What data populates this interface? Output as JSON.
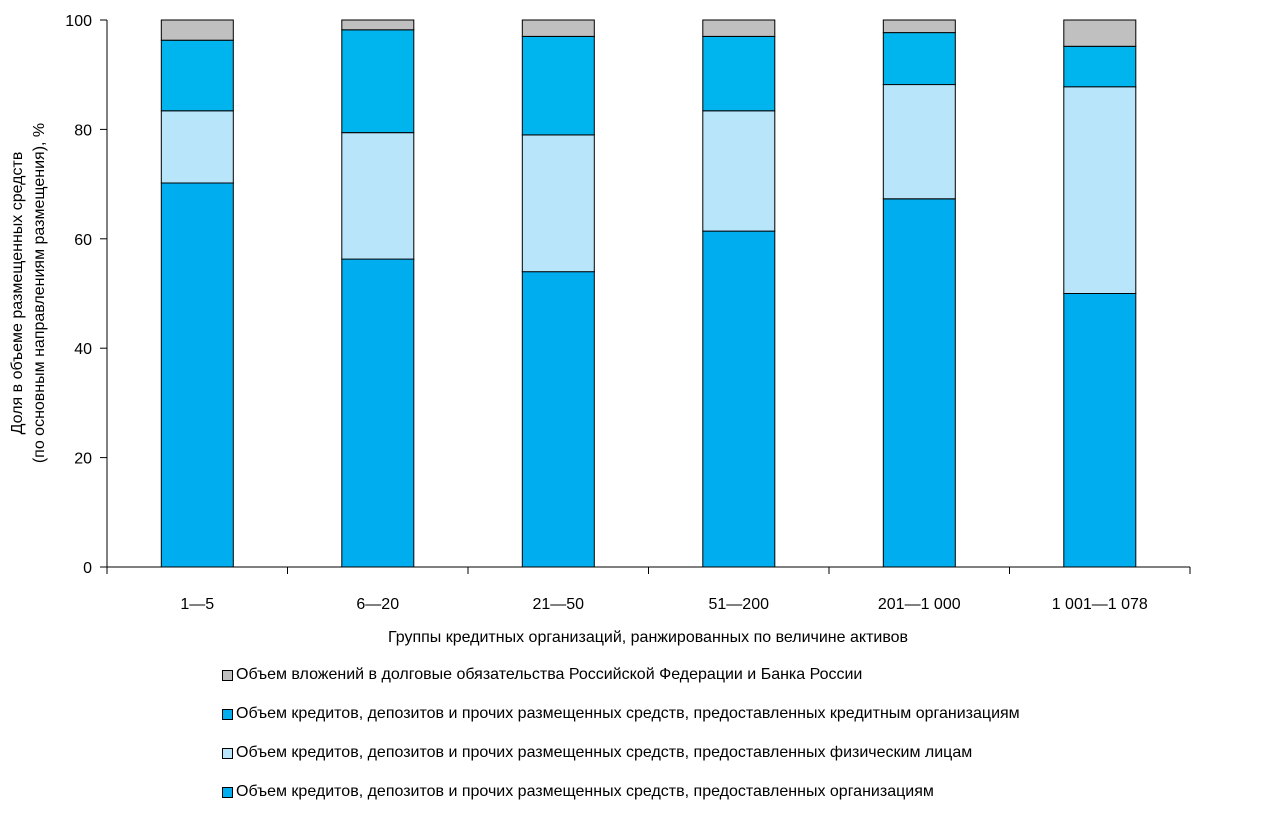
{
  "chart_data": {
    "type": "bar",
    "stacked": true,
    "categories": [
      "1—5",
      "6—20",
      "21—50",
      "51—200",
      "201—1 000",
      "1 001—1 078"
    ],
    "series": [
      {
        "name": "Объем кредитов, депозитов и прочих размещенных средств, предоставленных организациям",
        "color": "#00aeef",
        "values": [
          70.2,
          56.3,
          54.0,
          61.4,
          67.3,
          50.0
        ]
      },
      {
        "name": "Объем кредитов, депозитов и прочих размещенных средств, предоставленных физическим лицам",
        "color": "#b9e5fb",
        "values": [
          13.2,
          23.1,
          25.0,
          22.0,
          20.9,
          37.8
        ]
      },
      {
        "name": "Объем кредитов, депозитов и прочих размещенных средств, предоставленных кредитным организациям",
        "color": "#00b4ed",
        "values": [
          12.9,
          18.8,
          18.0,
          13.6,
          9.5,
          7.4
        ]
      },
      {
        "name": "Объем вложений в  долговые обязательства Российской Федерации и Банка России",
        "color": "#c0c0c0",
        "values": [
          3.7,
          1.8,
          3.0,
          3.0,
          2.3,
          4.8
        ]
      }
    ],
    "ylim": [
      0,
      100
    ],
    "yticks": [
      "0",
      "20",
      "40",
      "60",
      "80",
      "100"
    ],
    "ylabel_line1": "Доля в объеме размещенных средств",
    "ylabel_line2": "(по основным направлениям размещения), %",
    "xlabel": "Группы кредитных организаций, ранжированных по величине активов",
    "legend_order": [
      3,
      2,
      1,
      0
    ],
    "grid": false,
    "legend_position": "bottom"
  }
}
